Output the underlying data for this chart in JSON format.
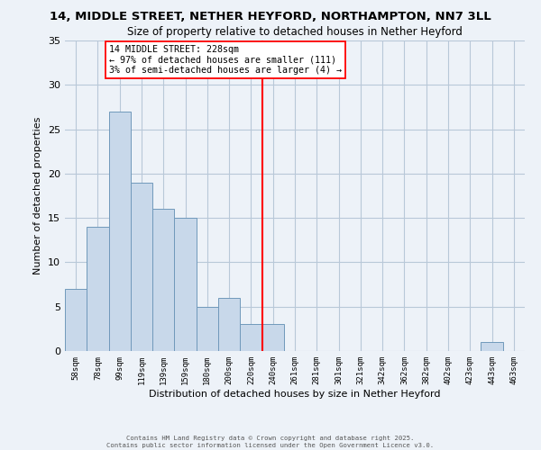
{
  "title": "14, MIDDLE STREET, NETHER HEYFORD, NORTHAMPTON, NN7 3LL",
  "subtitle": "Size of property relative to detached houses in Nether Heyford",
  "xlabel": "Distribution of detached houses by size in Nether Heyford",
  "ylabel": "Number of detached properties",
  "bar_labels": [
    "58sqm",
    "78sqm",
    "99sqm",
    "119sqm",
    "139sqm",
    "159sqm",
    "180sqm",
    "200sqm",
    "220sqm",
    "240sqm",
    "261sqm",
    "281sqm",
    "301sqm",
    "321sqm",
    "342sqm",
    "362sqm",
    "382sqm",
    "402sqm",
    "423sqm",
    "443sqm",
    "463sqm"
  ],
  "bar_values": [
    7,
    14,
    27,
    19,
    16,
    15,
    5,
    6,
    3,
    3,
    0,
    0,
    0,
    0,
    0,
    0,
    0,
    0,
    0,
    1,
    0
  ],
  "bar_color": "#c8d8ea",
  "bar_edge_color": "#7099bb",
  "vline_x": 8.5,
  "vline_color": "red",
  "annotation_text": "14 MIDDLE STREET: 228sqm\n← 97% of detached houses are smaller (111)\n3% of semi-detached houses are larger (4) →",
  "annotation_box_color": "white",
  "annotation_box_edge_color": "red",
  "ylim": [
    0,
    35
  ],
  "yticks": [
    0,
    5,
    10,
    15,
    20,
    25,
    30,
    35
  ],
  "grid_color": "#b8c8d8",
  "bg_color": "#edf2f8",
  "footnote1": "Contains HM Land Registry data © Crown copyright and database right 2025.",
  "footnote2": "Contains public sector information licensed under the Open Government Licence v3.0."
}
